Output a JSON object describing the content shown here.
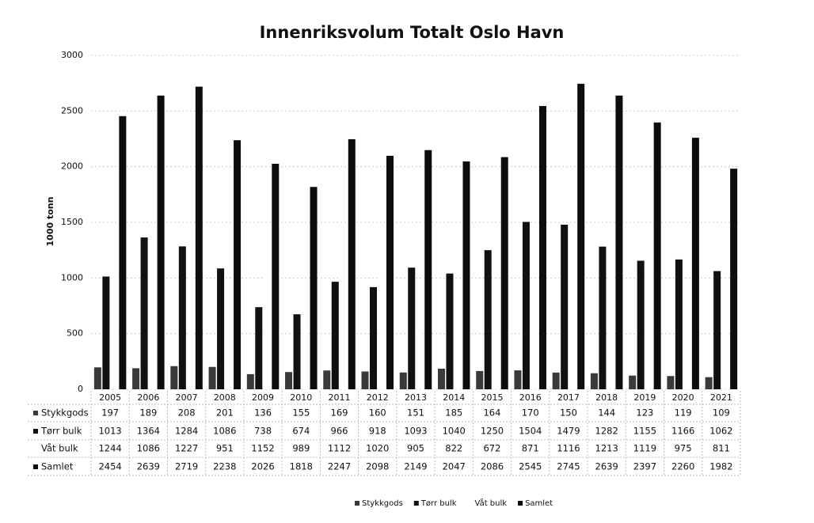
{
  "chart_data": {
    "type": "bar",
    "title": "Innenriksvolum Totalt Oslo Havn",
    "y_label": "1000 tonn",
    "categories": [
      "2005",
      "2006",
      "2007",
      "2008",
      "2009",
      "2010",
      "2011",
      "2012",
      "2013",
      "2014",
      "2015",
      "2016",
      "2017",
      "2018",
      "2019",
      "2020",
      "2021"
    ],
    "series": [
      {
        "name": "Stykkgods",
        "color": "#3a3a3a",
        "values": [
          197,
          189,
          208,
          201,
          136,
          155,
          169,
          160,
          151,
          185,
          164,
          170,
          150,
          144,
          123,
          119,
          109
        ]
      },
      {
        "name": "Tørr bulk",
        "color": "#111111",
        "values": [
          1013,
          1364,
          1284,
          1086,
          738,
          674,
          966,
          918,
          1093,
          1040,
          1250,
          1504,
          1479,
          1282,
          1155,
          1166,
          1062
        ]
      },
      {
        "name": "Våt bulk",
        "color": "#ffffff",
        "values": [
          1244,
          1086,
          1227,
          951,
          1152,
          989,
          1112,
          1020,
          905,
          822,
          672,
          871,
          1116,
          1213,
          1119,
          975,
          811
        ]
      },
      {
        "name": "Samlet",
        "color": "#0d0d0d",
        "values": [
          2454,
          2639,
          2719,
          2238,
          2026,
          1818,
          2247,
          2098,
          2149,
          2047,
          2086,
          2545,
          2745,
          2639,
          2397,
          2260,
          1982
        ]
      }
    ],
    "ylim": [
      0,
      3000
    ],
    "yticks": [
      0,
      500,
      1000,
      1500,
      2000,
      2500,
      3000
    ],
    "grid": true,
    "legend": "bottom"
  }
}
